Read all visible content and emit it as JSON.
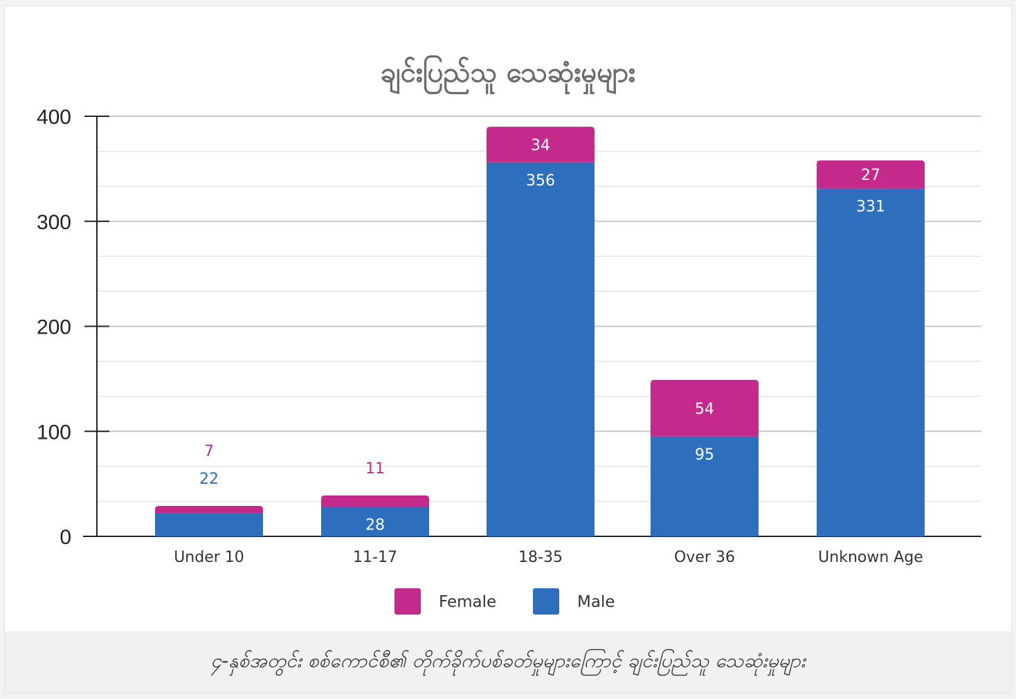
{
  "chart_data": {
    "type": "bar",
    "stacked": true,
    "title": "ချင်းပြည်သူ သေဆုံးမှုများ",
    "categories": [
      "Under 10",
      "11-17",
      "18-35",
      "Over 36",
      "Unknown Age"
    ],
    "series": [
      {
        "name": "Male",
        "values": [
          22,
          28,
          356,
          95,
          331
        ],
        "color": "#2e6fbd"
      },
      {
        "name": "Female",
        "values": [
          7,
          11,
          34,
          54,
          27
        ],
        "color": "#c42a8c"
      }
    ],
    "ylim": [
      0,
      400
    ],
    "yticks": [
      0,
      100,
      200,
      300,
      400
    ],
    "grid": true,
    "legend": "bottom"
  },
  "caption": "၄-နှစ်အတွင်း စစ်ကောင်စီ၏ တိုက်ခိုက်ပစ်ခတ်မှုများကြောင့် ချင်းပြည်သူ သေဆုံးမှုများ"
}
